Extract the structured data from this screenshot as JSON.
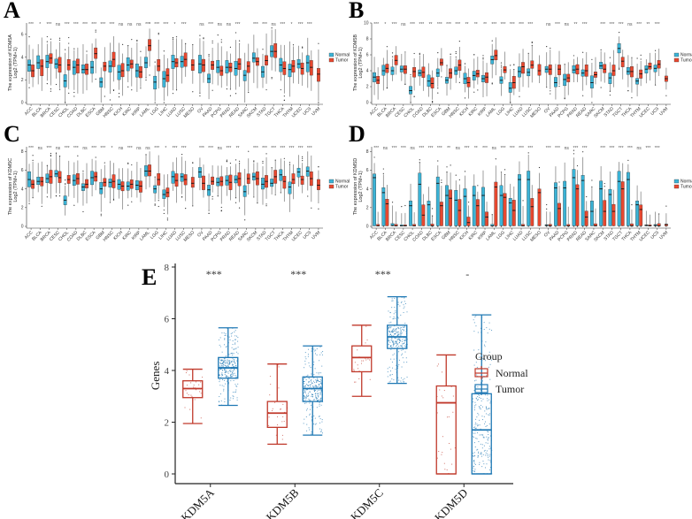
{
  "colors": {
    "normal_fill": "#3BB3D6",
    "tumor_fill": "#E8482F",
    "box_stroke": "#222222",
    "whisker": "#888888",
    "e_normal": "#C0392B",
    "e_tumor": "#1F78B4"
  },
  "chart_data": [
    {
      "type": "boxplot",
      "panel": "A",
      "ylabel_line1": "The expression of KDM5A",
      "ylabel_line2": "Log2 (TPM+1)",
      "ylim": [
        0,
        7
      ],
      "yticks": [
        0,
        2,
        4,
        6
      ],
      "legend": [
        "Normal",
        "Tumor"
      ],
      "legend_position": "right",
      "categories": [
        "ACC",
        "BLCA",
        "BRCA",
        "CESC",
        "CHOL",
        "COAD",
        "DLBC",
        "ESCA",
        "GBM",
        "HNSC",
        "KICH",
        "KIRC",
        "KIRP",
        "LAML",
        "LGG",
        "LIHC",
        "LUAD",
        "LUSC",
        "MESO",
        "OV",
        "PAAD",
        "PCPG",
        "PRAD",
        "READ",
        "SARC",
        "SKCM",
        "STAD",
        "TGCT",
        "THCA",
        "THYM",
        "UCEC",
        "UCS",
        "UVM"
      ],
      "significance": [
        "***",
        "*",
        "***",
        "ns",
        "***",
        "***",
        "***",
        "***",
        "***",
        "***",
        "ns",
        "ns",
        "ns",
        "***",
        "***",
        "***",
        "*",
        "***",
        "",
        "ns",
        "***",
        "ns",
        "ns",
        "***",
        "",
        "***",
        "***",
        "ns",
        "***",
        "*",
        "***",
        "***",
        ""
      ],
      "normal_median": [
        3.3,
        3.5,
        3.6,
        3.4,
        1.9,
        3.1,
        2.9,
        3.1,
        1.8,
        3.2,
        2.7,
        3.3,
        2.8,
        3.5,
        1.8,
        2.1,
        3.6,
        3.6,
        null,
        3.4,
        2.1,
        3.1,
        3.1,
        3.0,
        2.4,
        3.9,
        2.7,
        4.5,
        3.3,
        2.9,
        3.4,
        3.5,
        null
      ],
      "tumor_median": [
        2.8,
        3.2,
        3.9,
        3.3,
        3.3,
        3.3,
        2.9,
        4.3,
        3.2,
        3.8,
        2.8,
        3.4,
        2.7,
        5.0,
        3.2,
        2.4,
        3.5,
        3.8,
        3.3,
        3.3,
        3.3,
        2.8,
        3.1,
        3.4,
        3.2,
        3.6,
        3.7,
        4.5,
        3.0,
        3.2,
        3.0,
        3.1,
        2.5
      ]
    },
    {
      "type": "boxplot",
      "panel": "B",
      "ylabel_line1": "The expression of KDM5B",
      "ylabel_line2": "Log2 (TPM+1)",
      "ylim": [
        0,
        10
      ],
      "yticks": [
        0,
        2,
        4,
        6,
        8,
        10
      ],
      "legend": [
        "Normal",
        "Tumor"
      ],
      "legend_position": "right",
      "categories": [
        "ACC",
        "BLCA",
        "BRCA",
        "CESC",
        "CHOL",
        "COAD",
        "DLBC",
        "ESCA",
        "GBM",
        "HNSC",
        "KICH",
        "KIRC",
        "KIRP",
        "LAML",
        "LGG",
        "LIHC",
        "LUAD",
        "LUSC",
        "MESO",
        "OV",
        "PAAD",
        "PCPG",
        "PRAD",
        "READ",
        "SARC",
        "SKCM",
        "STAD",
        "TGCT",
        "THCA",
        "THYM",
        "UCEC",
        "UCS",
        "UVM"
      ],
      "significance": [
        "***",
        "*",
        "***",
        "ns",
        "***",
        "***",
        "**",
        "***",
        "***",
        "***",
        "**",
        "**",
        "**",
        "***",
        "***",
        "***",
        "***",
        "***",
        "",
        "ns",
        "***",
        "ns",
        "**",
        "***",
        "",
        "***",
        "***",
        "***",
        "ns",
        "***",
        "**",
        "***",
        ""
      ],
      "normal_median": [
        3.2,
        4.0,
        4.0,
        4.2,
        1.5,
        3.7,
        2.7,
        3.7,
        2.8,
        4.0,
        3.0,
        3.4,
        3.0,
        5.4,
        2.8,
        1.8,
        3.9,
        3.8,
        null,
        4.2,
        2.5,
        2.9,
        4.1,
        3.7,
        2.5,
        4.6,
        3.1,
        6.8,
        3.9,
        2.7,
        4.2,
        4.3,
        null
      ],
      "tumor_median": [
        2.8,
        4.3,
        5.3,
        4.2,
        3.9,
        3.8,
        2.4,
        5.0,
        3.7,
        4.7,
        2.5,
        3.6,
        3.2,
        5.9,
        4.1,
        2.5,
        4.5,
        4.7,
        4.0,
        4.2,
        4.2,
        3.1,
        4.2,
        4.0,
        3.5,
        4.2,
        4.0,
        5.2,
        3.9,
        3.6,
        4.5,
        4.8,
        3.0
      ]
    },
    {
      "type": "boxplot",
      "panel": "C",
      "ylabel_line1": "The expression of KDM5C",
      "ylabel_line2": "Log2 (TPM+1)",
      "ylim": [
        0,
        8.5
      ],
      "yticks": [
        0,
        2,
        4,
        6,
        8
      ],
      "legend": [
        "Normal",
        "Tumor"
      ],
      "legend_position": "right",
      "categories": [
        "ACC",
        "BLCA",
        "BRCA",
        "CESC",
        "CHOL",
        "COAD",
        "DLBC",
        "ESCA",
        "GBM",
        "HNSC",
        "KICH",
        "KIRC",
        "KIRP",
        "LAML",
        "LGG",
        "LIHC",
        "LUAD",
        "LUSC",
        "MESO",
        "OV",
        "PAAD",
        "PCPG",
        "PRAD",
        "READ",
        "SARC",
        "SKCM",
        "STAD",
        "TGCT",
        "THCA",
        "THYM",
        "UCEC",
        "UCS",
        "UVM"
      ],
      "significance": [
        "***",
        "ns",
        "***",
        "ns",
        "***",
        "***",
        "ns",
        "***",
        "***",
        "*",
        "ns",
        "***",
        "ns",
        "ns",
        "***",
        "*",
        "***",
        "***",
        "",
        "***",
        "***",
        "ns",
        "***",
        "**",
        "",
        "***",
        "***",
        "***",
        "***",
        "***",
        "***",
        "***",
        ""
      ],
      "normal_median": [
        5.0,
        4.8,
        5.1,
        5.6,
        2.8,
        4.9,
        4.2,
        5.2,
        4.0,
        4.7,
        4.5,
        4.3,
        4.4,
        5.9,
        4.0,
        3.4,
        5.3,
        5.3,
        null,
        5.8,
        3.9,
        4.7,
        4.9,
        5.0,
        3.7,
        5.3,
        4.5,
        4.6,
        5.5,
        4.2,
        5.8,
        5.9,
        null
      ],
      "tumor_median": [
        4.5,
        4.8,
        5.3,
        5.2,
        5.0,
        5.1,
        4.5,
        5.3,
        4.7,
        4.8,
        4.3,
        4.5,
        4.3,
        5.9,
        5.0,
        3.6,
        4.9,
        5.0,
        4.6,
        4.6,
        4.8,
        4.8,
        4.7,
        5.1,
        5.1,
        5.1,
        4.8,
        5.3,
        4.8,
        5.0,
        5.0,
        5.1,
        4.4
      ]
    },
    {
      "type": "boxplot",
      "panel": "D",
      "ylabel_line1": "The expression of KDM5D",
      "ylabel_line2": "Log2 (TPM+1)",
      "ylim": [
        0,
        8.5
      ],
      "yticks": [
        0,
        2,
        4,
        6,
        8
      ],
      "legend": [
        "Normal",
        "Tumor"
      ],
      "legend_position": "right",
      "categories": [
        "ACC",
        "BLCA",
        "BRCA",
        "CESC",
        "CHOL",
        "COAD",
        "DLBC",
        "ESCA",
        "GBM",
        "HNSC",
        "KICH",
        "KIRC",
        "KIRP",
        "LAML",
        "LGG",
        "LIHC",
        "LUAD",
        "LUSC",
        "MESO",
        "OV",
        "PAAD",
        "PCPG",
        "PRAD",
        "READ",
        "SARC",
        "SKCM",
        "STAD",
        "TGCT",
        "THCA",
        "THYM",
        "UCEC",
        "UCS",
        "UVM"
      ],
      "significance": [
        "***",
        "ns",
        "***",
        "***",
        "ns",
        "***",
        "***",
        "***",
        "**",
        "ns",
        "***",
        "**",
        "***",
        "ns",
        "***",
        "***",
        "***",
        "***",
        "",
        "***",
        "***",
        "ns",
        "***",
        "***",
        "",
        "***",
        "***",
        "***",
        "***",
        "ns",
        "***",
        "***",
        ""
      ],
      "normal_median": [
        5.2,
        3.6,
        0.1,
        0.05,
        2.2,
        4.5,
        2.3,
        4.6,
        3.3,
        2.8,
        3.2,
        3.3,
        3.3,
        0.05,
        3.3,
        2.5,
        5.0,
        5.0,
        null,
        0.1,
        4.1,
        4.1,
        5.2,
        4.9,
        1.6,
        4.0,
        3.4,
        4.8,
        5.0,
        2.3,
        0.1,
        0.1,
        null
      ],
      "tumor_median": [
        0.05,
        2.4,
        0.05,
        0.05,
        0.05,
        1.2,
        0.05,
        2.2,
        3.0,
        1.7,
        0.4,
        2.2,
        1.0,
        4.2,
        3.1,
        1.7,
        0.05,
        2.1,
        3.6,
        0.05,
        1.9,
        0.05,
        4.0,
        1.0,
        0.05,
        1.6,
        1.6,
        4.0,
        0.05,
        1.8,
        0.05,
        0.05,
        0.2
      ]
    },
    {
      "type": "boxplot",
      "panel": "E",
      "title": "",
      "xlabel": "",
      "ylabel": "Genes",
      "ylim": [
        0,
        8
      ],
      "yticks": [
        0,
        2,
        4,
        6,
        8
      ],
      "legend_title": "Group",
      "legend": [
        "Normal",
        "Tumor"
      ],
      "legend_position": "right",
      "categories": [
        "KDM5A",
        "KDM5B",
        "KDM5C",
        "KDM5D"
      ],
      "significance": [
        "***",
        "***",
        "***",
        "-"
      ],
      "series": [
        {
          "name": "Normal",
          "boxes": [
            {
              "min": 1.95,
              "q1": 2.95,
              "median": 3.3,
              "q3": 3.6,
              "max": 4.05
            },
            {
              "min": 1.15,
              "q1": 1.8,
              "median": 2.35,
              "q3": 2.8,
              "max": 4.25
            },
            {
              "min": 3.0,
              "q1": 3.95,
              "median": 4.5,
              "q3": 4.95,
              "max": 5.75
            },
            {
              "min": 0.0,
              "q1": 0.0,
              "median": 2.75,
              "q3": 3.4,
              "max": 4.6
            }
          ]
        },
        {
          "name": "Tumor",
          "boxes": [
            {
              "min": 2.65,
              "q1": 3.7,
              "median": 4.1,
              "q3": 4.5,
              "max": 5.65
            },
            {
              "min": 1.5,
              "q1": 2.8,
              "median": 3.3,
              "q3": 3.75,
              "max": 4.95
            },
            {
              "min": 3.5,
              "q1": 4.85,
              "median": 5.3,
              "q3": 5.75,
              "max": 6.85
            },
            {
              "min": 0.0,
              "q1": 0.0,
              "median": 1.7,
              "q3": 3.1,
              "max": 6.15
            }
          ]
        }
      ]
    }
  ]
}
